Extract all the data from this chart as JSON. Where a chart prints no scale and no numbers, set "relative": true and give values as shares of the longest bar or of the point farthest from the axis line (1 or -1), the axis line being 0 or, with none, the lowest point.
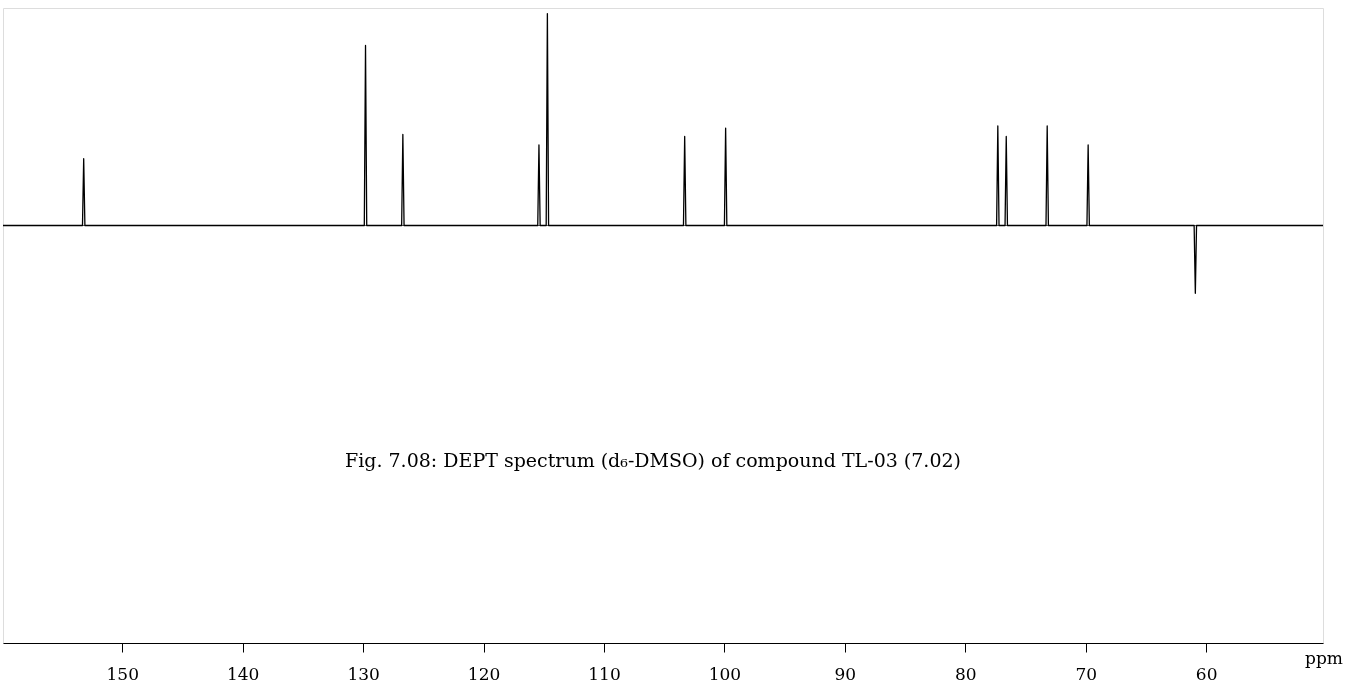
{
  "chart_data": {
    "type": "line",
    "relative": true,
    "title": "Fig. 7.08: DEPT spectrum (d₆-DMSO) of compound TL-03 (7.02)",
    "xlabel": "ppm",
    "x": [
      159.9,
      153.3,
      153.2,
      153.1,
      129.9,
      129.8,
      129.7,
      126.8,
      126.7,
      126.6,
      115.5,
      115.4,
      115.3,
      114.8,
      114.7,
      114.6,
      103.4,
      103.3,
      103.2,
      100.0,
      99.9,
      99.8,
      77.4,
      77.3,
      77.2,
      76.7,
      76.6,
      76.5,
      73.3,
      73.2,
      73.1,
      69.9,
      69.8,
      69.7,
      61.0,
      60.9,
      60.8,
      50.3
    ],
    "series": [
      {
        "color": "#000000",
        "values": [
          0,
          0,
          0.315,
          0,
          0,
          0.85,
          0,
          0,
          0.43,
          0,
          0,
          0.38,
          0,
          0,
          1,
          0,
          0,
          0.42,
          0,
          0,
          0.46,
          0,
          0,
          0.47,
          0,
          0,
          0.42,
          0,
          0,
          0.47,
          0,
          0,
          0.38,
          0,
          0,
          -0.32,
          0,
          0
        ]
      }
    ],
    "xlim": [
      159.9,
      50.3
    ],
    "xticks": [
      150,
      140,
      130,
      120,
      110,
      100,
      90,
      80,
      70,
      60
    ],
    "grid": false,
    "marker": "none",
    "line_style": "solid"
  }
}
